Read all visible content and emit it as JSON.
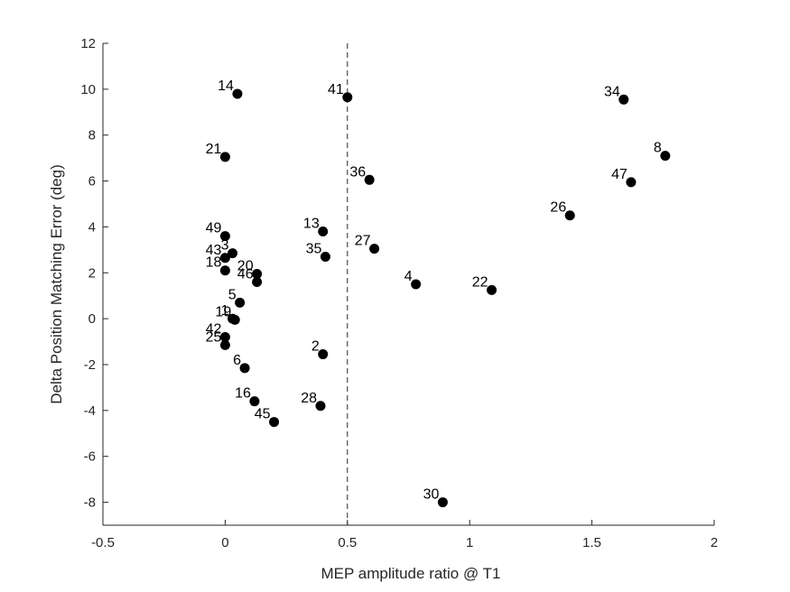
{
  "chart_data": {
    "type": "scatter",
    "title": "",
    "xlabel": "MEP amplitude ratio @ T1",
    "ylabel": "Delta Position Matching Error (deg)",
    "xlim": [
      -0.5,
      2
    ],
    "ylim": [
      -9,
      12
    ],
    "xticks": [
      -0.5,
      0,
      0.5,
      1,
      1.5,
      2
    ],
    "xtick_labels": [
      "-0.5",
      "0",
      "0.5",
      "1",
      "1.5",
      "2"
    ],
    "yticks": [
      -8,
      -6,
      -4,
      -2,
      0,
      2,
      4,
      6,
      8,
      10,
      12
    ],
    "ytick_labels": [
      "-8",
      "-6",
      "-4",
      "-2",
      "0",
      "2",
      "4",
      "6",
      "8",
      "10",
      "12"
    ],
    "grid": false,
    "reference_line": {
      "x": 0.5,
      "style": "dashed"
    },
    "points": [
      {
        "label": "14",
        "x": 0.05,
        "y": 9.8
      },
      {
        "label": "41",
        "x": 0.5,
        "y": 9.65
      },
      {
        "label": "34",
        "x": 1.63,
        "y": 9.55
      },
      {
        "label": "21",
        "x": 0.0,
        "y": 7.05
      },
      {
        "label": "8",
        "x": 1.8,
        "y": 7.1
      },
      {
        "label": "36",
        "x": 0.59,
        "y": 6.05
      },
      {
        "label": "47",
        "x": 1.66,
        "y": 5.95
      },
      {
        "label": "26",
        "x": 1.41,
        "y": 4.5
      },
      {
        "label": "49",
        "x": 0.0,
        "y": 3.6
      },
      {
        "label": "13",
        "x": 0.4,
        "y": 3.8
      },
      {
        "label": "27",
        "x": 0.61,
        "y": 3.05
      },
      {
        "label": "3",
        "x": 0.03,
        "y": 2.85
      },
      {
        "label": "43",
        "x": 0.0,
        "y": 2.65
      },
      {
        "label": "35",
        "x": 0.41,
        "y": 2.7
      },
      {
        "label": "18",
        "x": 0.0,
        "y": 2.1
      },
      {
        "label": "20",
        "x": 0.13,
        "y": 1.95
      },
      {
        "label": "46",
        "x": 0.13,
        "y": 1.6
      },
      {
        "label": "4",
        "x": 0.78,
        "y": 1.5
      },
      {
        "label": "22",
        "x": 1.09,
        "y": 1.25
      },
      {
        "label": "5",
        "x": 0.06,
        "y": 0.7
      },
      {
        "label": "1",
        "x": 0.03,
        "y": 0.0
      },
      {
        "label": "19",
        "x": 0.04,
        "y": -0.05
      },
      {
        "label": "42",
        "x": 0.0,
        "y": -0.8
      },
      {
        "label": "25",
        "x": 0.0,
        "y": -1.15
      },
      {
        "label": "2",
        "x": 0.4,
        "y": -1.55
      },
      {
        "label": "6",
        "x": 0.08,
        "y": -2.15
      },
      {
        "label": "16",
        "x": 0.12,
        "y": -3.6
      },
      {
        "label": "28",
        "x": 0.39,
        "y": -3.8
      },
      {
        "label": "45",
        "x": 0.2,
        "y": -4.5
      },
      {
        "label": "30",
        "x": 0.89,
        "y": -8.0
      }
    ]
  }
}
